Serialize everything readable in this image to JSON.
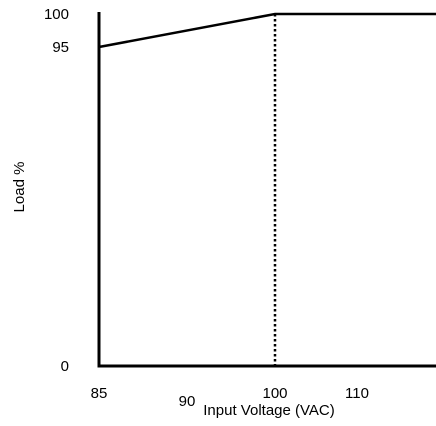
{
  "chart_data": {
    "type": "line",
    "title": "",
    "xlabel": "Input Voltage (VAC)",
    "ylabel": "Load %",
    "x_ticks": [
      {
        "value": 85,
        "label": "85"
      },
      {
        "value": 90,
        "label": "90"
      },
      {
        "value": 100,
        "label": "100"
      },
      {
        "value": 110,
        "label": "110"
      }
    ],
    "y_ticks": [
      {
        "value": 0,
        "label": "0"
      },
      {
        "value": 95,
        "label": "95"
      },
      {
        "value": 100,
        "label": "100"
      }
    ],
    "xlim": [
      85,
      119
    ],
    "ylim": [
      0,
      100
    ],
    "grid": false,
    "series": [
      {
        "x": [
          85,
          100,
          119
        ],
        "y": [
          95,
          100,
          100
        ],
        "color": "#000000"
      }
    ],
    "reference_lines": [
      {
        "axis": "x",
        "value": 100,
        "style": "dotted",
        "color": "#000000"
      }
    ]
  }
}
